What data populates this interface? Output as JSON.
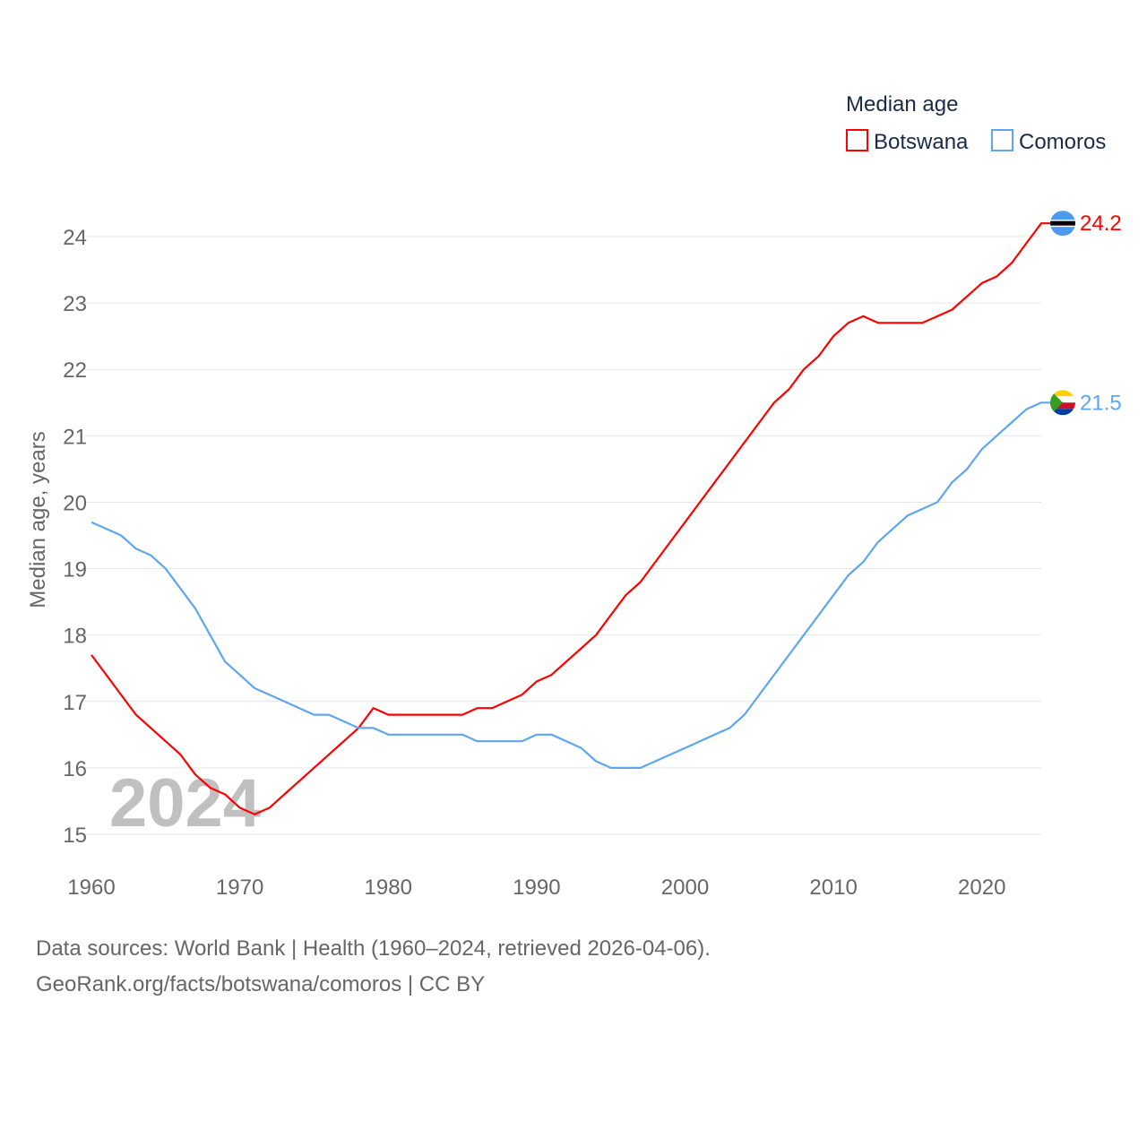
{
  "chart_data": {
    "type": "line",
    "legend_title": "Median age",
    "ylabel": "Median age, years",
    "xlabel": "",
    "ylim": [
      15,
      24
    ],
    "xlim": [
      1960,
      2024
    ],
    "yticks": [
      "15",
      "16",
      "17",
      "18",
      "19",
      "20",
      "21",
      "22",
      "23",
      "24"
    ],
    "xticks": [
      "1960",
      "1970",
      "1980",
      "1990",
      "2000",
      "2010",
      "2020"
    ],
    "watermark_year": "2024",
    "legend_position": "top-right",
    "grid": true,
    "x": [
      1960,
      1961,
      1962,
      1963,
      1964,
      1965,
      1966,
      1967,
      1968,
      1969,
      1970,
      1971,
      1972,
      1973,
      1974,
      1975,
      1976,
      1977,
      1978,
      1979,
      1980,
      1981,
      1982,
      1983,
      1984,
      1985,
      1986,
      1987,
      1988,
      1989,
      1990,
      1991,
      1992,
      1993,
      1994,
      1995,
      1996,
      1997,
      1998,
      1999,
      2000,
      2001,
      2002,
      2003,
      2004,
      2005,
      2006,
      2007,
      2008,
      2009,
      2010,
      2011,
      2012,
      2013,
      2014,
      2015,
      2016,
      2017,
      2018,
      2019,
      2020,
      2021,
      2022,
      2023,
      2024
    ],
    "series": [
      {
        "name": "Botswana",
        "color": "#ff0000",
        "end_label": "24.2",
        "flag": "botswana-flag",
        "values": [
          17.7,
          17.4,
          17.1,
          16.8,
          16.6,
          16.4,
          16.2,
          15.9,
          15.7,
          15.6,
          15.4,
          15.3,
          15.4,
          15.6,
          15.8,
          16.0,
          16.2,
          16.4,
          16.6,
          16.9,
          16.8,
          16.8,
          16.8,
          16.8,
          16.8,
          16.8,
          16.9,
          16.9,
          17.0,
          17.1,
          17.3,
          17.4,
          17.6,
          17.8,
          18.0,
          18.3,
          18.6,
          18.8,
          19.1,
          19.4,
          19.7,
          20.0,
          20.3,
          20.6,
          20.9,
          21.2,
          21.5,
          21.7,
          22.0,
          22.2,
          22.5,
          22.7,
          22.8,
          22.7,
          22.7,
          22.7,
          22.7,
          22.8,
          22.9,
          23.1,
          23.3,
          23.4,
          23.6,
          23.9,
          24.2
        ]
      },
      {
        "name": "Comoros",
        "color": "#5ea6ee",
        "end_label": "21.5",
        "flag": "comoros-flag",
        "values": [
          19.7,
          19.6,
          19.5,
          19.3,
          19.2,
          19.0,
          18.7,
          18.4,
          18.0,
          17.6,
          17.4,
          17.2,
          17.1,
          17.0,
          16.9,
          16.8,
          16.8,
          16.7,
          16.6,
          16.6,
          16.5,
          16.5,
          16.5,
          16.5,
          16.5,
          16.5,
          16.4,
          16.4,
          16.4,
          16.4,
          16.5,
          16.5,
          16.4,
          16.3,
          16.1,
          16.0,
          16.0,
          16.0,
          16.1,
          16.2,
          16.3,
          16.4,
          16.5,
          16.6,
          16.8,
          17.1,
          17.4,
          17.7,
          18.0,
          18.3,
          18.6,
          18.9,
          19.1,
          19.4,
          19.6,
          19.8,
          19.9,
          20.0,
          20.3,
          20.5,
          20.8,
          21.0,
          21.2,
          21.4,
          21.5
        ]
      }
    ]
  },
  "footer": {
    "line1": "Data sources: World Bank | Health (1960–2024, retrieved 2026-04-06).",
    "line2": "GeoRank.org/facts/botswana/comoros | CC BY"
  }
}
